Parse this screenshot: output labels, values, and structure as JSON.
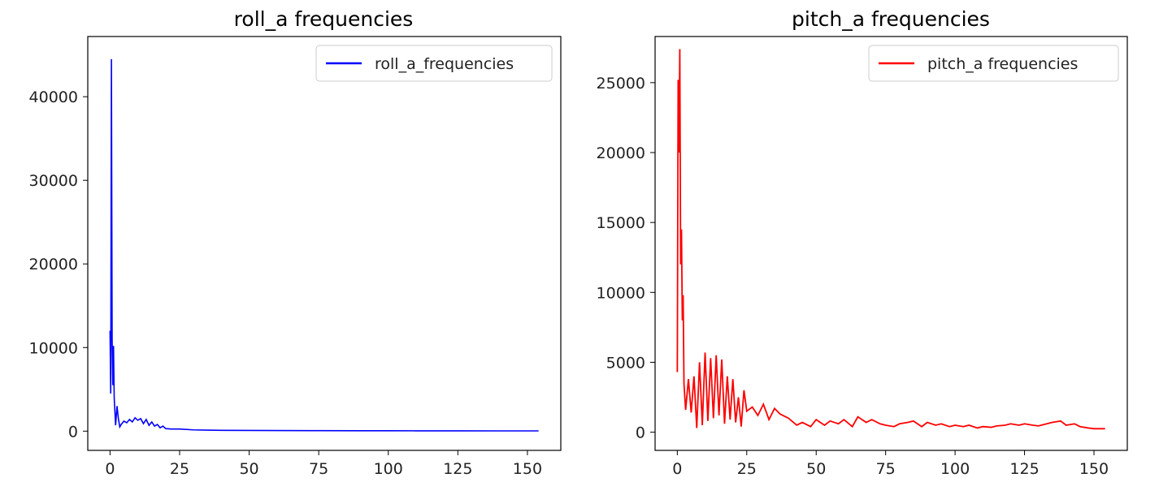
{
  "chart_data": [
    {
      "type": "line",
      "title": "roll_a frequencies",
      "xlabel": "",
      "ylabel": "",
      "xlim": [
        -8,
        162
      ],
      "ylim": [
        -2300,
        47200
      ],
      "xticks": [
        0,
        25,
        50,
        75,
        100,
        125,
        150
      ],
      "yticks": [
        0,
        10000,
        20000,
        30000,
        40000
      ],
      "grid": false,
      "legend_position": "top-right",
      "series": [
        {
          "name": "roll_a_frequencies",
          "color": "#0000ff",
          "x": [
            0,
            0.25,
            0.5,
            0.75,
            1,
            1.25,
            1.5,
            2,
            2.5,
            3,
            3.5,
            4,
            5,
            6,
            7,
            8,
            9,
            10,
            11,
            12,
            13,
            14,
            15,
            16,
            17,
            18,
            19,
            20,
            22,
            25,
            30,
            35,
            40,
            50,
            60,
            75,
            90,
            100,
            110,
            125,
            140,
            154
          ],
          "y": [
            12000,
            4500,
            44500,
            11000,
            5500,
            10200,
            4000,
            700,
            3000,
            1500,
            500,
            800,
            1200,
            1000,
            1400,
            1100,
            1600,
            1300,
            1500,
            900,
            1400,
            700,
            1100,
            600,
            800,
            400,
            600,
            300,
            250,
            250,
            150,
            120,
            100,
            80,
            70,
            60,
            50,
            50,
            40,
            40,
            30,
            30
          ]
        }
      ]
    },
    {
      "type": "line",
      "title": "pitch_a frequencies",
      "xlabel": "",
      "ylabel": "",
      "xlim": [
        -8,
        162
      ],
      "ylim": [
        -1300,
        28300
      ],
      "xticks": [
        0,
        25,
        50,
        75,
        100,
        125,
        150
      ],
      "yticks": [
        0,
        5000,
        10000,
        15000,
        20000,
        25000
      ],
      "grid": false,
      "legend_position": "top-right",
      "series": [
        {
          "name": "pitch_a frequencies",
          "color": "#ff0000",
          "x": [
            0,
            0.3,
            0.6,
            0.9,
            1.2,
            1.5,
            1.8,
            2.1,
            2.4,
            2.7,
            3,
            4,
            5,
            6,
            7,
            8,
            9,
            10,
            11,
            12,
            13,
            14,
            15,
            16,
            17,
            18,
            19,
            20,
            21,
            22,
            23,
            24,
            25,
            27,
            29,
            31,
            33,
            35,
            37,
            40,
            43,
            45,
            48,
            50,
            53,
            55,
            58,
            60,
            63,
            65,
            68,
            70,
            73,
            75,
            78,
            80,
            83,
            85,
            88,
            90,
            93,
            95,
            98,
            100,
            103,
            105,
            108,
            110,
            113,
            115,
            118,
            120,
            123,
            125,
            128,
            130,
            133,
            135,
            138,
            140,
            143,
            145,
            148,
            150,
            154
          ],
          "y": [
            4300,
            25200,
            20000,
            27400,
            12000,
            14500,
            8000,
            9800,
            3500,
            2500,
            1600,
            3800,
            1400,
            4000,
            300,
            5000,
            500,
            5700,
            800,
            5300,
            1000,
            5500,
            1200,
            5200,
            600,
            4000,
            900,
            3800,
            700,
            2500,
            400,
            3000,
            1500,
            1800,
            1200,
            2000,
            900,
            1700,
            1300,
            1000,
            500,
            700,
            400,
            900,
            500,
            800,
            600,
            900,
            400,
            1100,
            700,
            900,
            600,
            500,
            400,
            600,
            700,
            800,
            400,
            700,
            500,
            600,
            400,
            500,
            400,
            500,
            300,
            400,
            350,
            450,
            500,
            600,
            500,
            600,
            500,
            450,
            600,
            700,
            800,
            500,
            600,
            400,
            300,
            250,
            250
          ]
        }
      ]
    }
  ]
}
